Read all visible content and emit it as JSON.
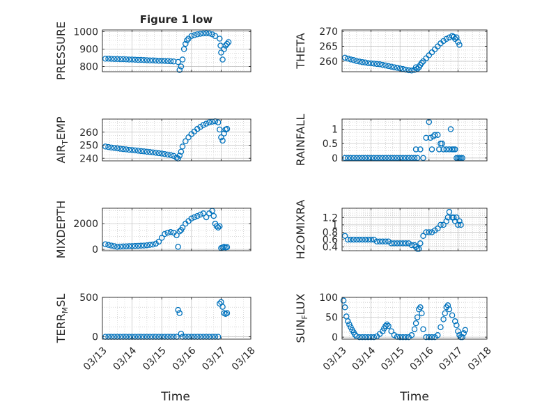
{
  "figure": {
    "title": "Figure 1 low",
    "xtick_labels": [
      "03/13",
      "03/14",
      "03/15",
      "03/16",
      "03/17",
      "03/18"
    ],
    "xlabel": "Time"
  },
  "colors": {
    "marker": "#0072BD",
    "axis": "#262626",
    "grid": "#bfbfbf",
    "background": "#ffffff"
  },
  "chart_data": [
    {
      "type": "scatter",
      "ylabel": "PRESSURE",
      "xlim": [
        0,
        5
      ],
      "ylim": [
        770,
        1010
      ],
      "yticks": [
        800,
        900,
        1000
      ],
      "grid": true,
      "x": [
        0.1,
        0.2,
        0.3,
        0.4,
        0.5,
        0.6,
        0.7,
        0.8,
        0.9,
        1.0,
        1.1,
        1.2,
        1.3,
        1.4,
        1.5,
        1.6,
        1.7,
        1.8,
        1.9,
        2.0,
        2.1,
        2.2,
        2.3,
        2.4,
        2.55,
        2.6,
        2.65,
        2.7,
        2.75,
        2.8,
        2.85,
        2.9,
        3.0,
        3.1,
        3.2,
        3.3,
        3.4,
        3.5,
        3.6,
        3.7,
        3.8,
        3.95,
        3.98,
        4.0,
        4.05,
        4.1,
        4.15,
        4.2,
        4.25
      ],
      "y": [
        845,
        845,
        844,
        843,
        843,
        842,
        842,
        841,
        840,
        840,
        839,
        838,
        838,
        837,
        836,
        835,
        835,
        834,
        833,
        833,
        832,
        831,
        830,
        829,
        826,
        780,
        800,
        840,
        900,
        930,
        950,
        960,
        975,
        980,
        985,
        988,
        990,
        991,
        990,
        985,
        975,
        960,
        920,
        880,
        840,
        900,
        920,
        930,
        940
      ]
    },
    {
      "type": "scatter",
      "ylabel": "THETA",
      "xlim": [
        0,
        5
      ],
      "ylim": [
        256.5,
        270.5
      ],
      "yticks": [
        260,
        265,
        270
      ],
      "grid": true,
      "x": [
        0.1,
        0.2,
        0.3,
        0.4,
        0.5,
        0.6,
        0.7,
        0.8,
        0.9,
        1.0,
        1.1,
        1.2,
        1.3,
        1.4,
        1.5,
        1.6,
        1.7,
        1.8,
        1.9,
        2.0,
        2.1,
        2.2,
        2.3,
        2.4,
        2.5,
        2.55,
        2.6,
        2.65,
        2.7,
        2.75,
        2.8,
        2.9,
        3.0,
        3.1,
        3.2,
        3.3,
        3.4,
        3.5,
        3.6,
        3.7,
        3.8,
        3.85,
        3.9,
        3.95,
        4.0,
        4.05
      ],
      "y": [
        261.2,
        260.9,
        260.6,
        260.4,
        260.1,
        259.9,
        259.7,
        259.6,
        259.4,
        259.3,
        259.2,
        259.1,
        259.0,
        258.8,
        258.6,
        258.4,
        258.2,
        258.0,
        257.8,
        257.6,
        257.4,
        257.2,
        257.0,
        256.9,
        257.1,
        258.0,
        257.5,
        258.0,
        258.8,
        259.5,
        260.0,
        261.0,
        262.0,
        263.0,
        264.0,
        265.0,
        266.0,
        266.8,
        267.5,
        268.0,
        268.5,
        268.2,
        267.5,
        268.0,
        266.5,
        265.5
      ]
    },
    {
      "type": "scatter",
      "ylabel": "AIR_TEMP",
      "xlim": [
        0,
        5
      ],
      "ylim": [
        238,
        270
      ],
      "yticks": [
        240,
        250,
        260
      ],
      "grid": true,
      "x": [
        0.1,
        0.2,
        0.3,
        0.4,
        0.5,
        0.6,
        0.7,
        0.8,
        0.9,
        1.0,
        1.1,
        1.2,
        1.3,
        1.4,
        1.5,
        1.6,
        1.7,
        1.8,
        1.9,
        2.0,
        2.1,
        2.2,
        2.3,
        2.4,
        2.5,
        2.55,
        2.6,
        2.65,
        2.7,
        2.8,
        2.9,
        3.0,
        3.1,
        3.2,
        3.3,
        3.4,
        3.5,
        3.6,
        3.7,
        3.8,
        3.9,
        3.95,
        4.0,
        4.05,
        4.1,
        4.15,
        4.2
      ],
      "y": [
        249,
        248.6,
        248.2,
        247.9,
        247.6,
        247.3,
        247.0,
        246.8,
        246.5,
        246.3,
        246.0,
        245.8,
        245.5,
        245.3,
        245.0,
        244.8,
        244.5,
        244.2,
        243.9,
        243.6,
        243.2,
        242.8,
        242.4,
        241.8,
        240.5,
        239.8,
        242.0,
        245.0,
        249.0,
        253.0,
        256.0,
        258.5,
        260.5,
        262.5,
        264.0,
        265.5,
        266.5,
        267.5,
        268.0,
        268.3,
        267.5,
        262.0,
        256.0,
        253.5,
        259.0,
        262.0,
        262.5
      ]
    },
    {
      "type": "scatter",
      "ylabel": "RAINFALL",
      "xlim": [
        0,
        5
      ],
      "ylim": [
        -0.1,
        1.35
      ],
      "yticks": [
        0,
        0.5,
        1
      ],
      "grid": true,
      "x": [
        0.1,
        0.2,
        0.3,
        0.4,
        0.5,
        0.6,
        0.7,
        0.8,
        0.9,
        1.0,
        1.1,
        1.2,
        1.3,
        1.4,
        1.5,
        1.6,
        1.7,
        1.8,
        1.9,
        2.0,
        2.1,
        2.2,
        2.3,
        2.4,
        2.5,
        2.55,
        2.6,
        2.7,
        2.8,
        2.9,
        3.0,
        3.05,
        3.1,
        3.15,
        3.2,
        3.3,
        3.35,
        3.4,
        3.45,
        3.5,
        3.6,
        3.7,
        3.75,
        3.8,
        3.85,
        3.9,
        3.95,
        4.0,
        4.05,
        4.1,
        4.15
      ],
      "y": [
        0,
        0,
        0,
        0,
        0,
        0,
        0,
        0,
        0,
        0,
        0,
        0,
        0,
        0,
        0,
        0,
        0,
        0,
        0,
        0,
        0,
        0,
        0,
        0,
        0,
        0.3,
        0,
        0.3,
        0,
        0.7,
        1.25,
        0.7,
        0.3,
        0.75,
        0.8,
        0.8,
        0.3,
        0.5,
        0.5,
        0.3,
        0.3,
        0.3,
        1.0,
        0.3,
        0.3,
        0.3,
        0,
        0,
        0,
        0,
        0
      ]
    },
    {
      "type": "scatter",
      "ylabel": "MIXDEPTH",
      "xlim": [
        0,
        5
      ],
      "ylim": [
        -100,
        3200
      ],
      "yticks": [
        0,
        2000
      ],
      "grid": true,
      "x": [
        0.1,
        0.2,
        0.3,
        0.4,
        0.5,
        0.6,
        0.7,
        0.8,
        0.9,
        1.0,
        1.1,
        1.2,
        1.3,
        1.4,
        1.5,
        1.6,
        1.7,
        1.8,
        1.9,
        2.0,
        2.1,
        2.2,
        2.3,
        2.4,
        2.5,
        2.55,
        2.6,
        2.65,
        2.7,
        2.8,
        2.9,
        3.0,
        3.1,
        3.2,
        3.3,
        3.4,
        3.5,
        3.6,
        3.7,
        3.75,
        3.8,
        3.85,
        3.9,
        3.95,
        4.0,
        4.05,
        4.1,
        4.15,
        4.2
      ],
      "y": [
        400,
        350,
        300,
        250,
        200,
        220,
        230,
        240,
        250,
        260,
        270,
        280,
        290,
        300,
        320,
        350,
        380,
        450,
        600,
        900,
        1200,
        1300,
        1350,
        1300,
        1100,
        200,
        1400,
        1500,
        1700,
        2000,
        2200,
        2400,
        2500,
        2600,
        2700,
        2800,
        2500,
        2800,
        3000,
        2600,
        2000,
        1800,
        1700,
        1800,
        100,
        150,
        200,
        150,
        180
      ]
    },
    {
      "type": "scatter",
      "ylabel": "H2OMIXRA",
      "xlim": [
        0,
        5
      ],
      "ylim": [
        0.3,
        1.45
      ],
      "yticks": [
        0.4,
        0.6,
        0.8,
        1,
        1.2
      ],
      "grid": true,
      "x": [
        0.1,
        0.2,
        0.3,
        0.4,
        0.5,
        0.6,
        0.7,
        0.8,
        0.9,
        1.0,
        1.1,
        1.2,
        1.3,
        1.4,
        1.5,
        1.6,
        1.7,
        1.8,
        1.9,
        2.0,
        2.1,
        2.2,
        2.3,
        2.4,
        2.5,
        2.55,
        2.6,
        2.65,
        2.7,
        2.8,
        2.9,
        3.0,
        3.1,
        3.2,
        3.3,
        3.4,
        3.5,
        3.6,
        3.65,
        3.7,
        3.8,
        3.85,
        3.9,
        3.95,
        4.0,
        4.05,
        4.1
      ],
      "y": [
        0.7,
        0.6,
        0.6,
        0.6,
        0.6,
        0.6,
        0.6,
        0.6,
        0.6,
        0.6,
        0.6,
        0.55,
        0.55,
        0.55,
        0.55,
        0.55,
        0.5,
        0.5,
        0.5,
        0.5,
        0.5,
        0.5,
        0.5,
        0.45,
        0.45,
        0.4,
        0.35,
        0.35,
        0.5,
        0.7,
        0.8,
        0.8,
        0.8,
        0.85,
        0.9,
        1.0,
        1.0,
        1.1,
        1.2,
        1.35,
        1.2,
        1.2,
        1.1,
        1.2,
        1.0,
        1.1,
        1.0
      ]
    },
    {
      "type": "scatter",
      "ylabel": "TERR_MSL",
      "xlim": [
        0,
        5
      ],
      "ylim": [
        -30,
        500
      ],
      "yticks": [
        0,
        500
      ],
      "grid": true,
      "x": [
        0.1,
        0.2,
        0.3,
        0.4,
        0.5,
        0.6,
        0.7,
        0.8,
        0.9,
        1.0,
        1.1,
        1.2,
        1.3,
        1.4,
        1.5,
        1.6,
        1.7,
        1.8,
        1.9,
        2.0,
        2.1,
        2.2,
        2.3,
        2.4,
        2.5,
        2.55,
        2.6,
        2.65,
        2.7,
        2.8,
        2.9,
        3.0,
        3.1,
        3.2,
        3.3,
        3.4,
        3.5,
        3.6,
        3.7,
        3.8,
        3.9,
        3.95,
        4.0,
        4.05,
        4.1,
        4.15,
        4.2
      ],
      "y": [
        0,
        0,
        0,
        0,
        0,
        0,
        0,
        0,
        0,
        0,
        0,
        0,
        0,
        0,
        0,
        0,
        0,
        0,
        0,
        0,
        0,
        0,
        0,
        0,
        0,
        340,
        300,
        40,
        0,
        0,
        0,
        0,
        0,
        0,
        0,
        0,
        0,
        0,
        0,
        0,
        0,
        420,
        440,
        380,
        300,
        290,
        300
      ]
    },
    {
      "type": "scatter",
      "ylabel": "SUN_FLUX",
      "xlim": [
        0,
        5
      ],
      "ylim": [
        -5,
        100
      ],
      "yticks": [
        0,
        50,
        100
      ],
      "grid": true,
      "x": [
        0.05,
        0.1,
        0.15,
        0.2,
        0.25,
        0.3,
        0.35,
        0.4,
        0.45,
        0.5,
        0.6,
        0.7,
        0.8,
        0.9,
        1.0,
        1.1,
        1.2,
        1.3,
        1.4,
        1.45,
        1.5,
        1.55,
        1.6,
        1.7,
        1.8,
        1.9,
        2.0,
        2.1,
        2.2,
        2.3,
        2.4,
        2.5,
        2.55,
        2.6,
        2.65,
        2.7,
        2.75,
        2.8,
        2.9,
        3.0,
        3.1,
        3.2,
        3.3,
        3.4,
        3.5,
        3.55,
        3.6,
        3.65,
        3.7,
        3.8,
        3.9,
        3.95,
        4.0,
        4.05,
        4.1,
        4.15,
        4.2,
        4.25
      ],
      "y": [
        92,
        75,
        52,
        40,
        32,
        25,
        18,
        12,
        6,
        2,
        0,
        0,
        0,
        0,
        0,
        0,
        2,
        8,
        15,
        22,
        28,
        32,
        28,
        15,
        5,
        1,
        0,
        0,
        0,
        0,
        5,
        20,
        35,
        50,
        70,
        75,
        60,
        20,
        0,
        0,
        0,
        0,
        5,
        25,
        45,
        60,
        75,
        80,
        70,
        55,
        40,
        30,
        15,
        5,
        0,
        0,
        10,
        18
      ]
    }
  ]
}
